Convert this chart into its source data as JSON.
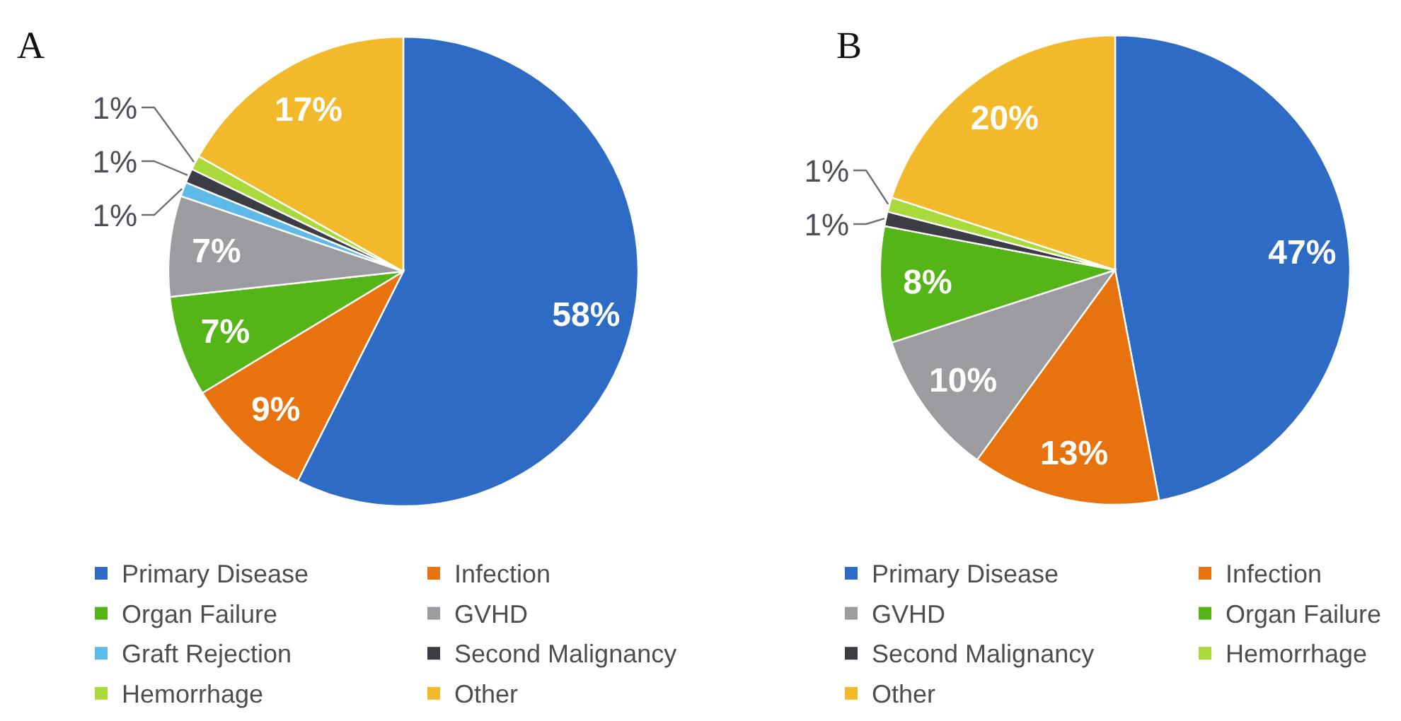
{
  "chart_data": [
    {
      "type": "pie",
      "title": "A",
      "categories": [
        "Primary Disease",
        "Infection",
        "Organ Failure",
        "GVHD",
        "Graft Rejection",
        "Second Malignancy",
        "Hemorrhage",
        "Other"
      ],
      "values": [
        58,
        9,
        7,
        7,
        1,
        1,
        1,
        17
      ],
      "colors": [
        "#2e6bc4",
        "#e8730e",
        "#55b417",
        "#9b9ba0",
        "#5db9e8",
        "#3b3c44",
        "#a9d93a",
        "#f2b92b"
      ],
      "value_labels": [
        "58%",
        "9%",
        "7%",
        "7%",
        "1%",
        "1%",
        "1%",
        "17%"
      ],
      "legend": "bottom"
    },
    {
      "type": "pie",
      "title": "B",
      "categories": [
        "Primary Disease",
        "Infection",
        "GVHD",
        "Organ Failure",
        "Second Malignancy",
        "Hemorrhage",
        "Other"
      ],
      "values": [
        47,
        13,
        10,
        8,
        1,
        1,
        20
      ],
      "colors": [
        "#2e6bc4",
        "#e8730e",
        "#9b9ba0",
        "#55b417",
        "#3b3c44",
        "#a9d93a",
        "#f2b92b"
      ],
      "value_labels": [
        "47%",
        "13%",
        "10%",
        "8%",
        "1%",
        "1%",
        "20%"
      ],
      "legend": "bottom"
    }
  ]
}
